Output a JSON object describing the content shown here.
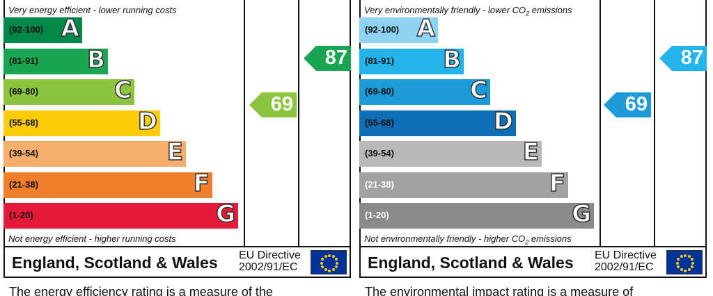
{
  "energy": {
    "top_note": "Very energy efficient - lower running costs",
    "bottom_note": "Not energy efficient - higher running costs",
    "bands": [
      {
        "range": "(92-100)",
        "letter": "A",
        "color": "#00874a"
      },
      {
        "range": "(81-91)",
        "letter": "B",
        "color": "#1aa553"
      },
      {
        "range": "(69-80)",
        "letter": "C",
        "color": "#8cc43f"
      },
      {
        "range": "(55-68)",
        "letter": "D",
        "color": "#fccc0b"
      },
      {
        "range": "(39-54)",
        "letter": "E",
        "color": "#f6ae6b"
      },
      {
        "range": "(21-38)",
        "letter": "F",
        "color": "#ef7f2b"
      },
      {
        "range": "(1-20)",
        "letter": "G",
        "color": "#e31b38"
      }
    ],
    "current": {
      "value": "69",
      "color": "#8cc43f"
    },
    "potential": {
      "value": "87",
      "color": "#1aa553"
    },
    "region": "England, Scotland & Wales",
    "directive_line1": "EU Directive",
    "directive_line2": "2002/91/EC",
    "caption": "The energy efficiency rating is a measure of the"
  },
  "environment": {
    "top_note_prefix": "Very environmentally friendly - lower CO",
    "top_note_sub": "2",
    "top_note_suffix": " emissions",
    "bottom_note_prefix": "Not environmentally friendly - higher CO",
    "bottom_note_sub": "2",
    "bottom_note_suffix": " emissions",
    "bands": [
      {
        "range": "(92-100)",
        "letter": "A",
        "color": "#8fd3f4"
      },
      {
        "range": "(81-91)",
        "letter": "B",
        "color": "#23b4ec"
      },
      {
        "range": "(69-80)",
        "letter": "C",
        "color": "#1c9bd8"
      },
      {
        "range": "(55-68)",
        "letter": "D",
        "color": "#0d6eb5"
      },
      {
        "range": "(39-54)",
        "letter": "E",
        "color": "#b9b9b9"
      },
      {
        "range": "(21-38)",
        "letter": "F",
        "color": "#a2a2a2"
      },
      {
        "range": "(1-20)",
        "letter": "G",
        "color": "#8a8a8a"
      }
    ],
    "current": {
      "value": "69",
      "color": "#1c9bd8"
    },
    "potential": {
      "value": "87",
      "color": "#23b4ec"
    },
    "region": "England, Scotland & Wales",
    "directive_line1": "EU Directive",
    "directive_line2": "2002/91/EC",
    "caption": "The environmental impact rating is a measure of"
  },
  "chart_data": [
    {
      "type": "bar",
      "categories": [
        "(92-100) A",
        "(81-91) B",
        "(69-80) C",
        "(55-68) D",
        "(39-54) E",
        "(21-38) F",
        "(1-20) G"
      ],
      "current": 69,
      "potential": 87
    },
    {
      "type": "bar",
      "categories": [
        "(92-100) A",
        "(81-91) B",
        "(69-80) C",
        "(55-68) D",
        "(39-54) E",
        "(21-38) F",
        "(1-20) G"
      ],
      "current": 69,
      "potential": 87
    }
  ]
}
